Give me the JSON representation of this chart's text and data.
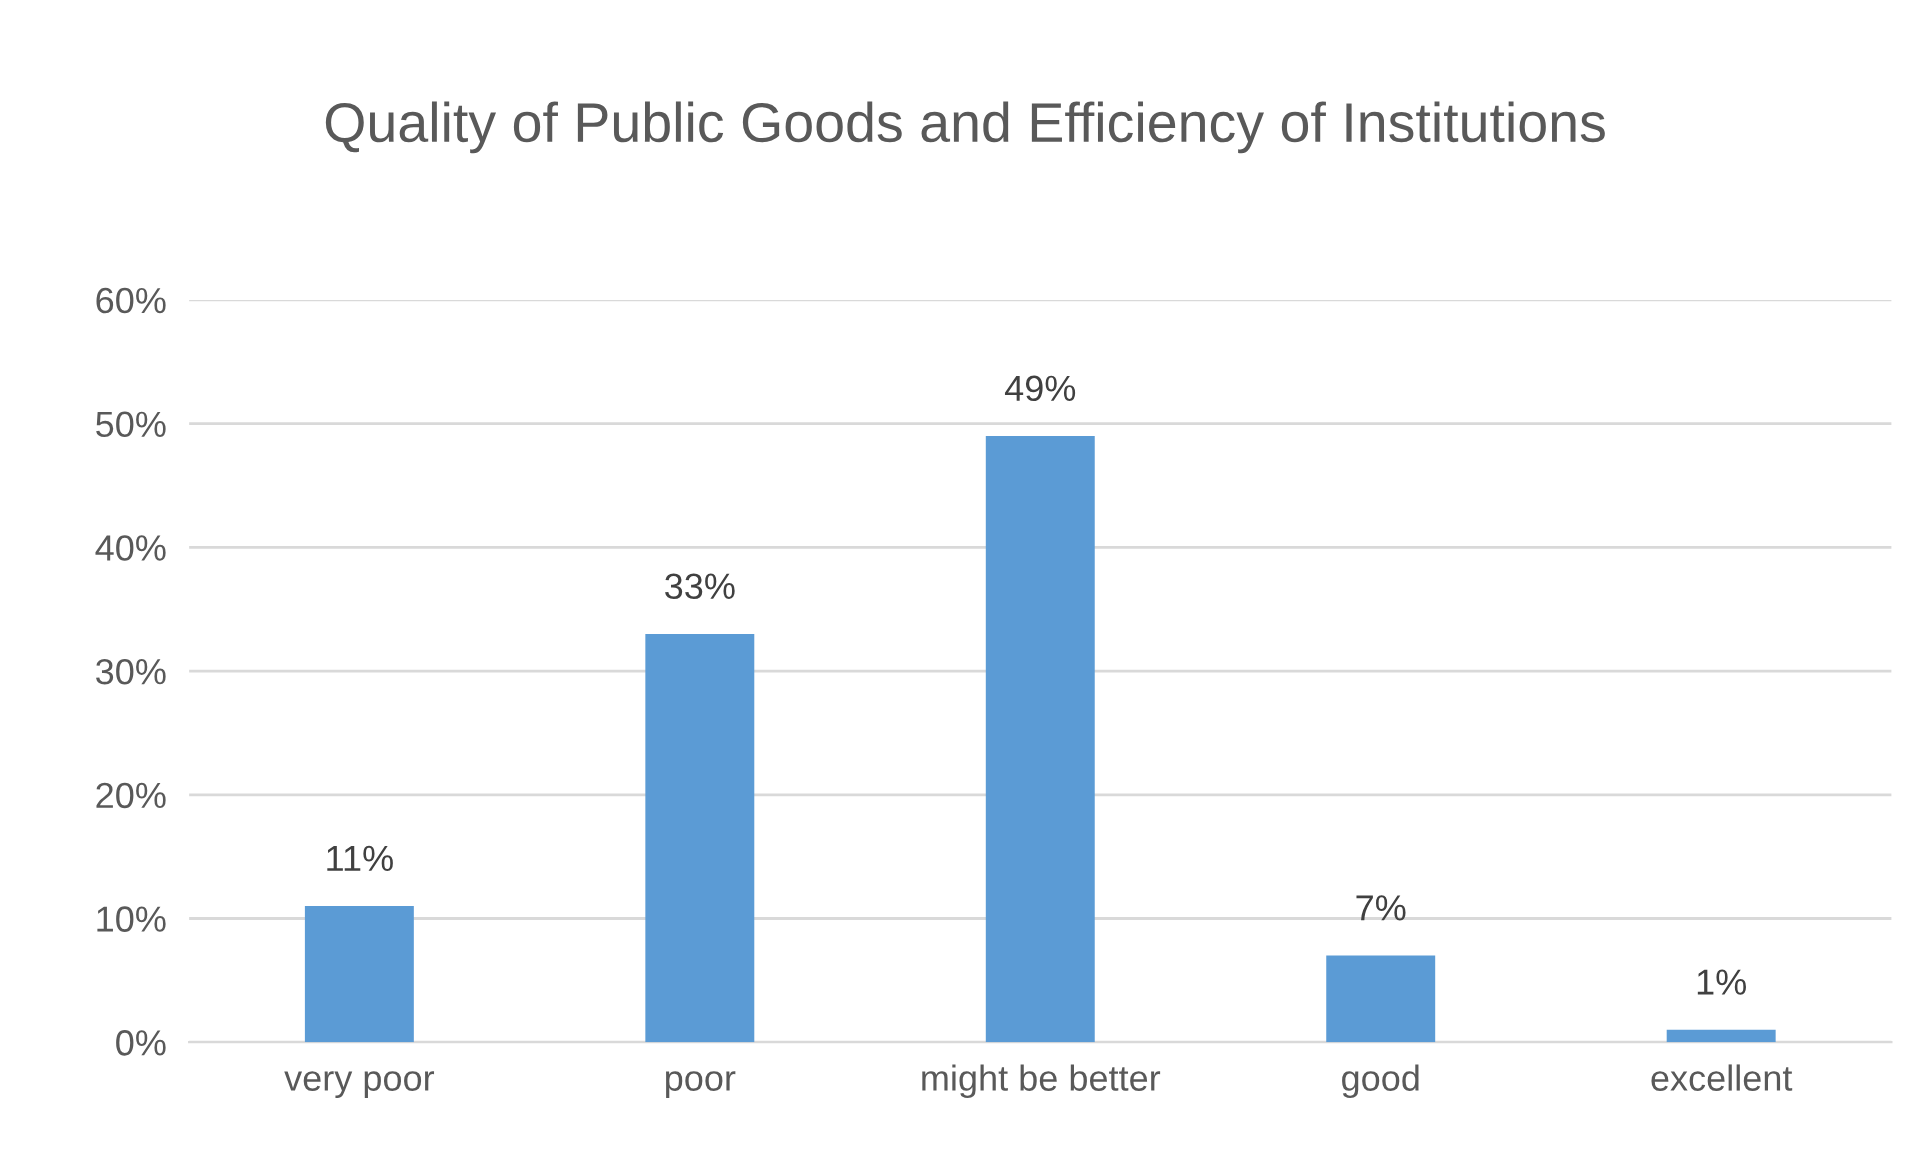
{
  "chart_data": {
    "type": "bar",
    "title": "Quality of Public Goods and Efficiency of Institutions",
    "categories": [
      "very poor",
      "poor",
      "might be better",
      "good",
      "excellent"
    ],
    "values": [
      11,
      33,
      49,
      7,
      1
    ],
    "value_labels": [
      "11%",
      "33%",
      "49%",
      "7%",
      "1%"
    ],
    "color": "#5b9bd5",
    "ylim": [
      0,
      60
    ],
    "yticks": [
      {
        "value": 0,
        "label": "0%"
      },
      {
        "value": 10,
        "label": "10%"
      },
      {
        "value": 20,
        "label": "20%"
      },
      {
        "value": 30,
        "label": "30%"
      },
      {
        "value": 40,
        "label": "40%"
      },
      {
        "value": 50,
        "label": "50%"
      },
      {
        "value": 60,
        "label": "60%"
      }
    ],
    "grid": "y",
    "legend": false
  }
}
